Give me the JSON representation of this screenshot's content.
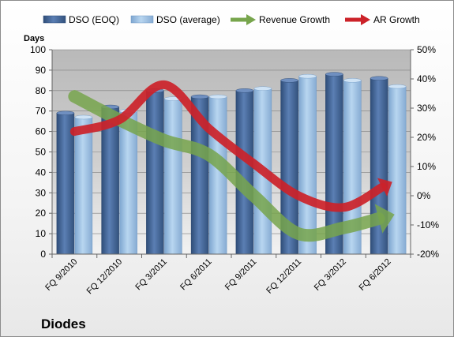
{
  "chart_data": {
    "type": "bar",
    "title": "",
    "company_label": "Diodes",
    "y_left_label": "Days",
    "y_left_range": [
      0,
      100
    ],
    "y_left_ticks": [
      "0",
      "10",
      "20",
      "30",
      "40",
      "50",
      "60",
      "70",
      "80",
      "90",
      "100"
    ],
    "y_right_range": [
      -20,
      50
    ],
    "y_right_ticks": [
      "-20%",
      "-10%",
      "0%",
      "10%",
      "20%",
      "30%",
      "40%",
      "50%"
    ],
    "categories": [
      "FQ 9/2010",
      "FQ 12/2010",
      "FQ 3/2011",
      "FQ 6/2011",
      "FQ 9/2011",
      "FQ 12/2011",
      "FQ 3/2012",
      "FQ 6/2012"
    ],
    "series": [
      {
        "name": "DSO (EOQ)",
        "kind": "bar",
        "axis": "left",
        "color": "#4a6fa5",
        "values": [
          69,
          72,
          80,
          77,
          80,
          85,
          88,
          86
        ]
      },
      {
        "name": "DSO (average)",
        "kind": "bar",
        "axis": "left",
        "color": "#9dc3e6",
        "values": [
          67,
          70,
          76,
          77,
          81,
          87,
          85,
          82
        ]
      },
      {
        "name": "Revenue Growth",
        "kind": "line",
        "axis": "right",
        "color": "#77a54c",
        "values": [
          34,
          26,
          19,
          14,
          0,
          -13,
          -11,
          -7
        ]
      },
      {
        "name": "AR Growth",
        "kind": "line",
        "axis": "right",
        "color": "#cc2229",
        "values": [
          22,
          26,
          38,
          23,
          11,
          0,
          -4,
          4
        ]
      }
    ],
    "grid": true,
    "legend": "top"
  }
}
